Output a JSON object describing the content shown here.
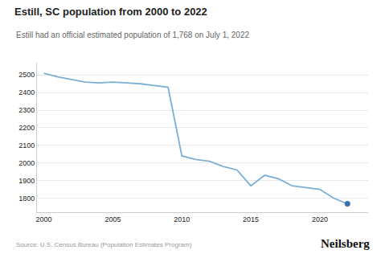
{
  "chart_data": {
    "type": "line",
    "title": "Estill, SC population from 2000 to 2022",
    "subtitle": "Estill had an official estimated population of 1,768 on July 1, 2022",
    "source": "Source: U.S. Census Bureau (Population Estimates Program)",
    "branding": "Neilsberg",
    "x": [
      2000,
      2001,
      2002,
      2003,
      2004,
      2005,
      2006,
      2007,
      2008,
      2009,
      2010,
      2011,
      2012,
      2013,
      2014,
      2015,
      2016,
      2017,
      2018,
      2019,
      2020,
      2021,
      2022
    ],
    "series": [
      {
        "type": "line",
        "color": "#7bafd4",
        "values": [
          2510,
          2490,
          2475,
          2460,
          2455,
          2460,
          2455,
          2450,
          2440,
          2430,
          2040,
          2020,
          2010,
          1980,
          1960,
          1870,
          1930,
          1910,
          1870,
          1860,
          1850,
          1800,
          1768
        ]
      },
      {
        "type": "scatter",
        "color": "#3a6fa8",
        "values": [
          null,
          null,
          null,
          null,
          null,
          null,
          null,
          null,
          null,
          null,
          null,
          null,
          null,
          null,
          null,
          null,
          null,
          null,
          null,
          null,
          null,
          null,
          1768
        ]
      }
    ],
    "xlim": [
      1999.5,
      2023.5
    ],
    "xticks": [
      2000,
      2005,
      2010,
      2015,
      2020
    ],
    "ylim": [
      1720,
      2570
    ],
    "yticks": [
      1800,
      1900,
      2000,
      2100,
      2200,
      2300,
      2400,
      2500
    ],
    "grid": true
  }
}
